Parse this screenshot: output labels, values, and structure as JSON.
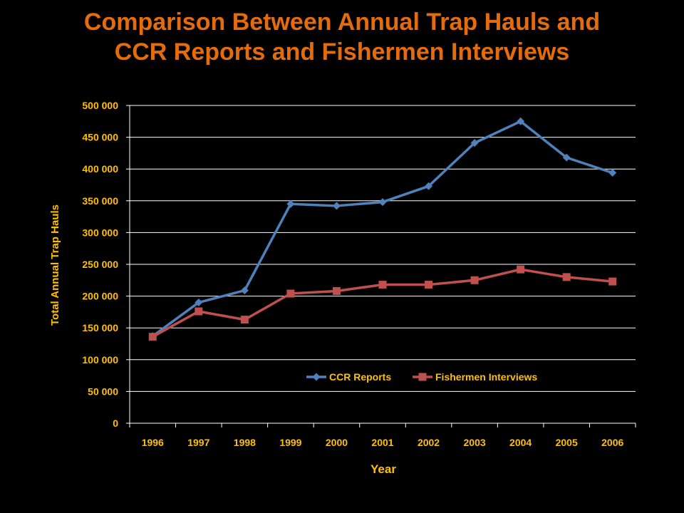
{
  "title": {
    "line1": "Comparison Between  Annual Trap Hauls and",
    "line2": "CCR Reports and Fishermen Interviews"
  },
  "colors": {
    "background": "#000000",
    "title": "#E46C0A",
    "axis_text": "#FFC000",
    "series_ccr": "#4F81BD",
    "series_fishermen": "#C0504D",
    "gridline": "#FFFFFF"
  },
  "chart_data": {
    "type": "line",
    "xlabel": "Year",
    "ylabel": "Total Annual Trap  Hauls",
    "categories": [
      "1996",
      "1997",
      "1998",
      "1999",
      "2000",
      "2001",
      "2002",
      "2003",
      "2004",
      "2005",
      "2006"
    ],
    "ylim": [
      0,
      500000
    ],
    "yticks": [
      0,
      50000,
      100000,
      150000,
      200000,
      250000,
      300000,
      350000,
      400000,
      450000,
      500000
    ],
    "ytick_labels": [
      "0",
      "50 000",
      "100 000",
      "150 000",
      "200 000",
      "250 000",
      "300 000",
      "350 000",
      "400 000",
      "450 000",
      "500 000"
    ],
    "grid": true,
    "legend_position": "inside-bottom-right",
    "series": [
      {
        "name": "CCR Reports",
        "marker": "diamond",
        "color": "#4F81BD",
        "values": [
          137000,
          190000,
          209000,
          345000,
          342000,
          348000,
          373000,
          441000,
          475000,
          418000,
          394000
        ]
      },
      {
        "name": "Fishermen Interviews",
        "marker": "square",
        "color": "#C0504D",
        "values": [
          136000,
          176000,
          163000,
          204000,
          208000,
          218000,
          218000,
          225000,
          242000,
          230000,
          223000
        ]
      }
    ]
  }
}
